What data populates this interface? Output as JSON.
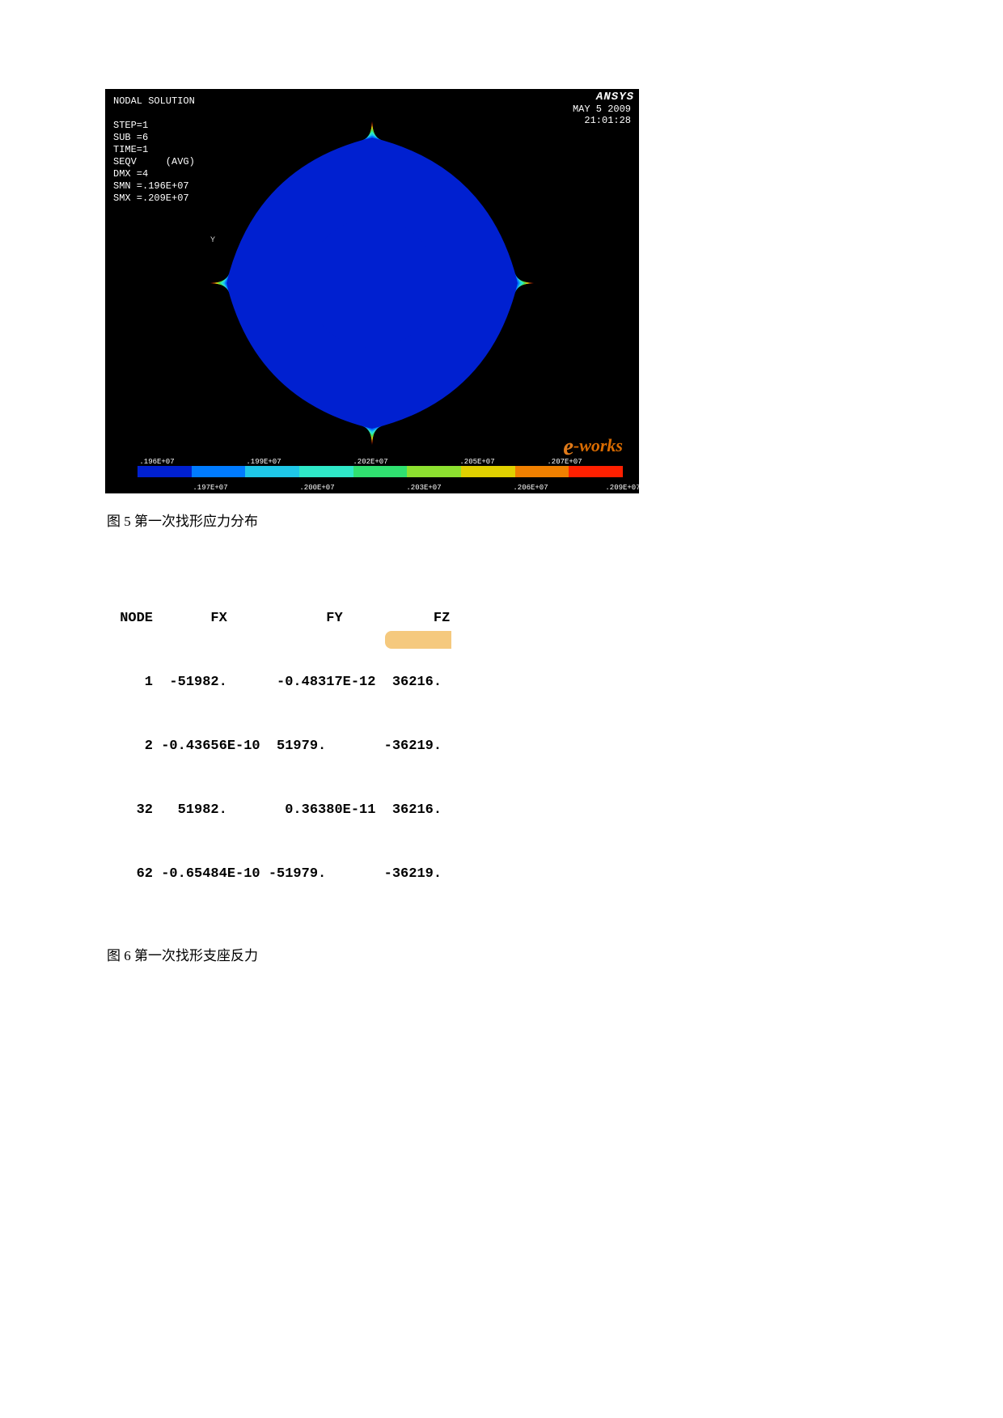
{
  "ansys": {
    "title": "NODAL SOLUTION",
    "step": "STEP=1",
    "sub": "SUB =6",
    "time": "TIME=1",
    "seqv": "SEQV     (AVG)",
    "dmx": "DMX =4",
    "smn": "SMN =.196E+07",
    "smx": "SMX =.209E+07",
    "logo": "ANSYS",
    "date": "MAY  5 2009",
    "clock": "21:01:28",
    "y_label": "Y",
    "watermark_e": "e",
    "watermark_text": "-works"
  },
  "contour": {
    "colors": [
      "#0020d0",
      "#007bff",
      "#1fc7e8",
      "#2fe8c8",
      "#30e070",
      "#8de030",
      "#e0d000",
      "#f08000",
      "#ff2000"
    ],
    "legend_colors": [
      "#0020d0",
      "#007bff",
      "#1fc7e8",
      "#2fe8c8",
      "#30e070",
      "#8de030",
      "#e0d000",
      "#f08000",
      "#ff2000"
    ],
    "legend_labels_upper": [
      ".196E+07",
      ".199E+07",
      ".202E+07",
      ".205E+07",
      ".207E+07"
    ],
    "legend_labels_lower": [
      ".197E+07",
      ".200E+07",
      ".203E+07",
      ".206E+07",
      ".209E+07"
    ],
    "legend_upper_positions_pct": [
      4,
      26,
      48,
      70,
      88
    ],
    "legend_lower_positions_pct": [
      15,
      37,
      59,
      81,
      100
    ]
  },
  "captions": {
    "fig5": "图 5  第一次找形应力分布",
    "fig6": "图 6  第一次找形支座反力"
  },
  "node_table": {
    "header": " NODE       FX            FY           FZ",
    "rows": [
      "    1  -51982.      -0.48317E-12  36216.",
      "    2 -0.43656E-10  51979.       -36219.",
      "   32   51982.       0.36380E-11  36216.",
      "   62 -0.65484E-10 -51979.       -36219."
    ],
    "highlight_row_index": 3,
    "highlight_text_fragment": "-36219."
  }
}
